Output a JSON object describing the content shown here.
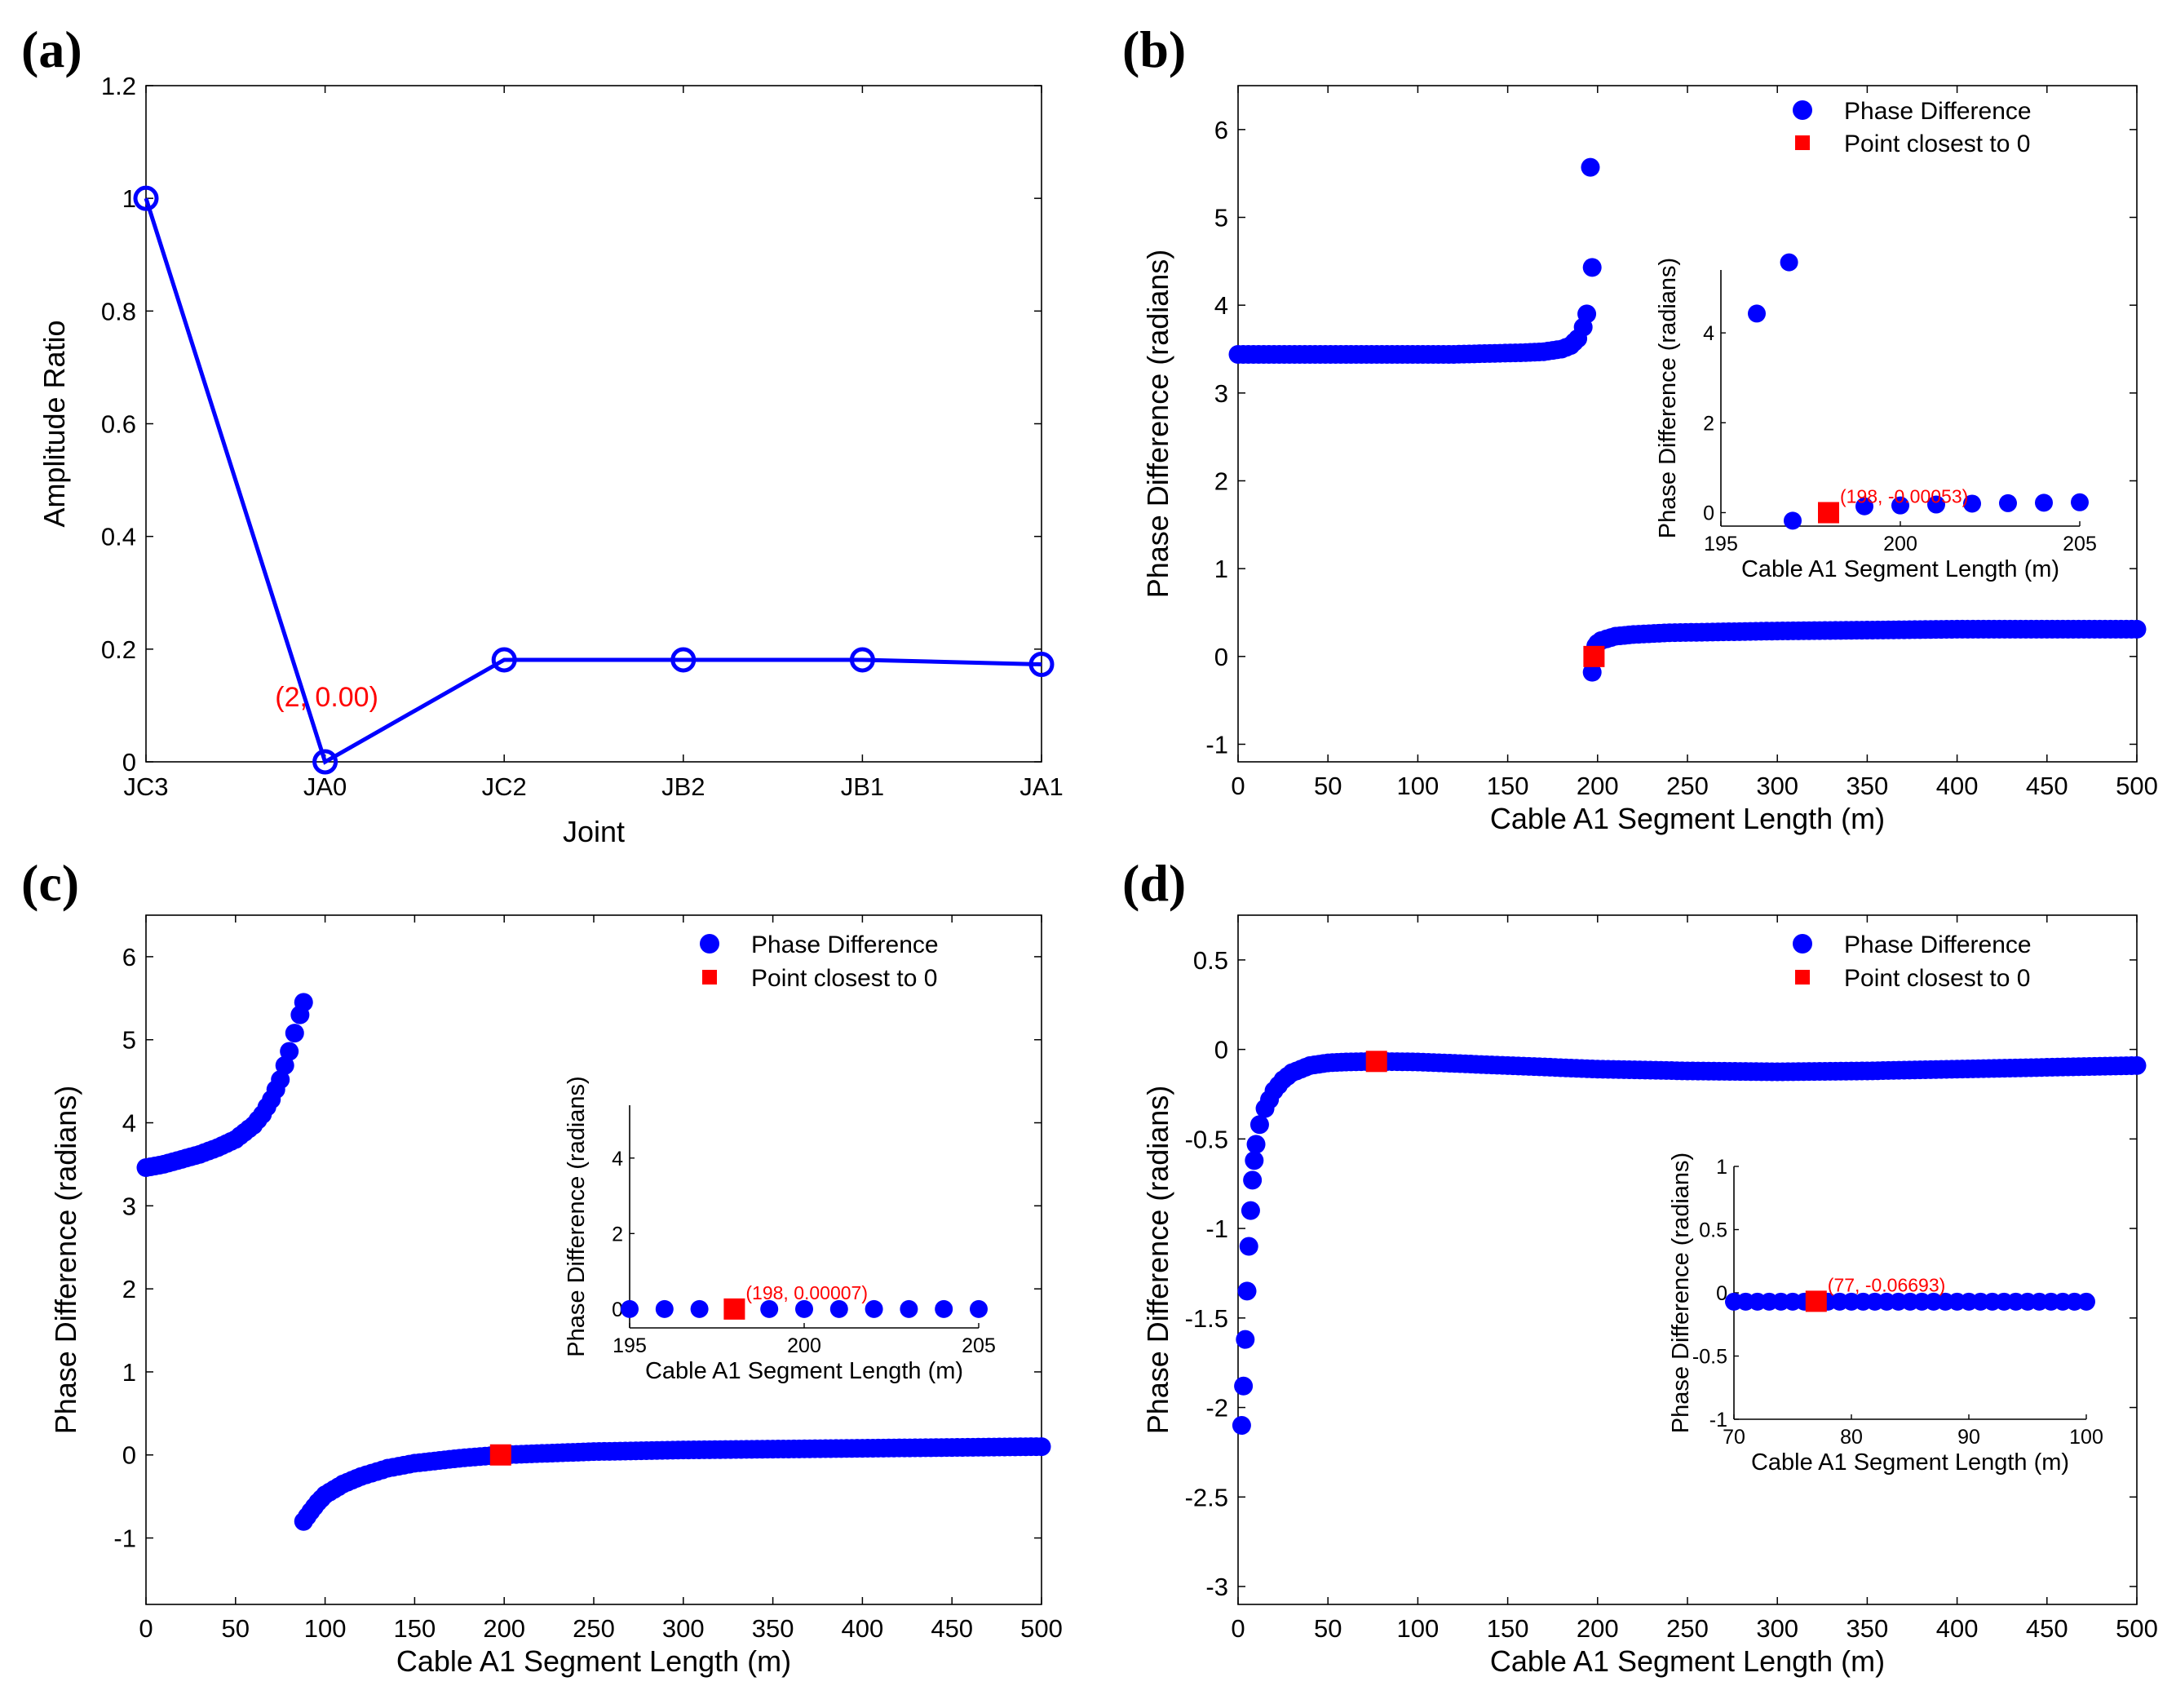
{
  "chart_data": [
    {
      "panel": "(a)",
      "type": "line",
      "xlabel": "Joint",
      "ylabel": "Amplitude Ratio",
      "categories": [
        "JC3",
        "JA0",
        "JC2",
        "JB2",
        "JB1",
        "JA1"
      ],
      "series": [
        {
          "values": [
            1.0,
            0.0,
            0.181,
            0.181,
            0.181,
            0.173
          ],
          "color": "#0000ff",
          "marker": "circle"
        }
      ],
      "ylim": [
        0,
        1.2
      ],
      "yticks": [
        "0",
        "0.2",
        "0.4",
        "0.6",
        "0.8",
        "1",
        "1.2"
      ],
      "annotation": {
        "text": "(2, 0.00)",
        "x": 2,
        "y": 0.0,
        "color": "#ff0000"
      },
      "grid": false
    },
    {
      "panel": "(b)",
      "type": "scatter",
      "xlabel": "Cable A1 Segment Length (m)",
      "ylabel": "Phase Difference (radians)",
      "xlim": [
        0,
        500
      ],
      "ylim": [
        -1.2,
        6.5
      ],
      "xticks": [
        "0",
        "50",
        "100",
        "150",
        "200",
        "250",
        "300",
        "350",
        "400",
        "450",
        "500"
      ],
      "yticks": [
        "-1",
        "0",
        "1",
        "2",
        "3",
        "4",
        "5",
        "6"
      ],
      "legend": {
        "position": "top-right",
        "entries": [
          "Phase Difference",
          "Point closest to 0"
        ]
      },
      "series": [
        {
          "name": "Phase Difference",
          "color": "#0000ff",
          "marker": "circle",
          "segments": [
            {
              "x": [
                0,
                20,
                40,
                60,
                80,
                100,
                120,
                140,
                160,
                170,
                180,
                185,
                189,
                192,
                194
              ],
              "y": [
                3.44,
                3.44,
                3.44,
                3.44,
                3.44,
                3.44,
                3.44,
                3.45,
                3.46,
                3.47,
                3.5,
                3.54,
                3.62,
                3.75,
                3.9
              ]
            },
            {
              "x": [
                196,
                197,
                197,
                199,
                200,
                202,
                205,
                210,
                220,
                240,
                270,
                300,
                350,
                400,
                450,
                500
              ],
              "y": [
                5.57,
                4.43,
                -0.18,
                0.12,
                0.15,
                0.18,
                0.2,
                0.23,
                0.25,
                0.27,
                0.28,
                0.29,
                0.3,
                0.31,
                0.31,
                0.31
              ]
            }
          ]
        },
        {
          "name": "Point closest to 0",
          "color": "#ff0000",
          "marker": "square",
          "x": [
            198
          ],
          "y": [
            -0.00053
          ]
        }
      ],
      "inset": {
        "xlabel": "Cable A1 Segment Length (m)",
        "ylabel": "Phase Difference (radians)",
        "xlim": [
          195,
          205
        ],
        "ylim": [
          -0.3,
          5.4
        ],
        "xticks": [
          "195",
          "200",
          "205"
        ],
        "yticks": [
          "0",
          "2",
          "4"
        ],
        "points": {
          "x": [
            196,
            196.9,
            197,
            199,
            200,
            201,
            202,
            203,
            204,
            205
          ],
          "y": [
            4.43,
            5.57,
            -0.18,
            0.14,
            0.16,
            0.18,
            0.2,
            0.21,
            0.22,
            0.23
          ]
        },
        "highlight": {
          "x": 198,
          "y": -0.00053
        },
        "annotation": "(198, -0.00053)"
      }
    },
    {
      "panel": "(c)",
      "type": "scatter",
      "xlabel": "Cable A1 Segment Length (m)",
      "ylabel": "Phase Difference (radians)",
      "xlim": [
        0,
        500
      ],
      "ylim": [
        -1.8,
        6.5
      ],
      "xticks": [
        "0",
        "50",
        "100",
        "150",
        "200",
        "250",
        "300",
        "350",
        "400",
        "450",
        "500"
      ],
      "yticks": [
        "-1",
        "0",
        "1",
        "2",
        "3",
        "4",
        "5",
        "6"
      ],
      "legend": {
        "position": "top-right",
        "entries": [
          "Phase Difference",
          "Point closest to 0"
        ]
      },
      "series": [
        {
          "name": "Phase Difference",
          "color": "#0000ff",
          "marker": "circle",
          "segments": [
            {
              "x": [
                0,
                10,
                20,
                30,
                40,
                50,
                60,
                65,
                70,
                75,
                80,
                83,
                86,
                88
              ],
              "y": [
                3.46,
                3.5,
                3.56,
                3.62,
                3.7,
                3.8,
                3.97,
                4.1,
                4.28,
                4.52,
                4.86,
                5.08,
                5.3,
                5.45
              ]
            },
            {
              "x": [
                88,
                92,
                96,
                100,
                110,
                120,
                135,
                150,
                175,
                198,
                250,
                300,
                350,
                400,
                450,
                500
              ],
              "y": [
                -0.8,
                -0.68,
                -0.57,
                -0.48,
                -0.35,
                -0.26,
                -0.16,
                -0.1,
                -0.04,
                0.0,
                0.04,
                0.06,
                0.07,
                0.08,
                0.09,
                0.1
              ]
            }
          ]
        },
        {
          "name": "Point closest to 0",
          "color": "#ff0000",
          "marker": "square",
          "x": [
            198
          ],
          "y": [
            7e-05
          ]
        }
      ],
      "inset": {
        "xlabel": "Cable A1 Segment Length (m)",
        "ylabel": "Phase Difference (radians)",
        "xlim": [
          195,
          205
        ],
        "ylim": [
          -0.5,
          5.4
        ],
        "xticks": [
          "195",
          "200",
          "205"
        ],
        "yticks": [
          "0",
          "2",
          "4"
        ],
        "points": {
          "x": [
            195,
            196,
            197,
            199,
            200,
            201,
            202,
            203,
            204,
            205
          ],
          "y": [
            0.0,
            0.0,
            0.0,
            0.0,
            0.0,
            0.0,
            0.0,
            0.0,
            0.0,
            0.0
          ]
        },
        "highlight": {
          "x": 198,
          "y": 7e-05
        },
        "annotation": "(198, 0.00007)"
      }
    },
    {
      "panel": "(d)",
      "type": "scatter",
      "xlabel": "Cable A1 Segment Length (m)",
      "ylabel": "Phase Difference (radians)",
      "xlim": [
        0,
        500
      ],
      "ylim": [
        -3.1,
        0.75
      ],
      "xticks": [
        "0",
        "50",
        "100",
        "150",
        "200",
        "250",
        "300",
        "350",
        "400",
        "450",
        "500"
      ],
      "yticks": [
        "-3",
        "-2.5",
        "-2",
        "-1.5",
        "-1",
        "-0.5",
        "0",
        "0.5"
      ],
      "legend": {
        "position": "top-right",
        "entries": [
          "Phase Difference",
          "Point closest to 0"
        ]
      },
      "series": [
        {
          "name": "Phase Difference",
          "color": "#0000ff",
          "marker": "circle",
          "segments": [
            {
              "x": [
                2,
                3,
                4,
                5,
                6,
                7,
                8,
                9,
                10,
                12,
                15,
                20,
                25,
                30,
                40,
                50,
                60,
                77,
                100,
                150,
                200,
                250,
                300,
                350,
                400,
                450,
                500
              ],
              "y": [
                -2.1,
                -1.88,
                -1.62,
                -1.35,
                -1.1,
                -0.9,
                -0.73,
                -0.62,
                -0.53,
                -0.42,
                -0.33,
                -0.23,
                -0.17,
                -0.13,
                -0.09,
                -0.075,
                -0.07,
                -0.067,
                -0.07,
                -0.09,
                -0.11,
                -0.12,
                -0.125,
                -0.12,
                -0.11,
                -0.1,
                -0.09
              ]
            }
          ]
        },
        {
          "name": "Point closest to 0",
          "color": "#ff0000",
          "marker": "square",
          "x": [
            77
          ],
          "y": [
            -0.06693
          ]
        }
      ],
      "inset": {
        "xlabel": "Cable A1 Segment Length (m)",
        "ylabel": "Phase Difference (radians)",
        "xlim": [
          70,
          100
        ],
        "ylim": [
          -1,
          1
        ],
        "xticks": [
          "70",
          "80",
          "90",
          "100"
        ],
        "yticks": [
          "-1",
          "-0.5",
          "0",
          "0.5",
          "1"
        ],
        "points": {
          "x": [
            70,
            71,
            72,
            73,
            74,
            75,
            76,
            78,
            79,
            80,
            81,
            82,
            83,
            84,
            85,
            86,
            87,
            88,
            89,
            90,
            91,
            92,
            93,
            94,
            95,
            96,
            97,
            98,
            99,
            100
          ],
          "y": [
            -0.07,
            -0.07,
            -0.07,
            -0.07,
            -0.07,
            -0.07,
            -0.07,
            -0.07,
            -0.07,
            -0.07,
            -0.07,
            -0.07,
            -0.07,
            -0.07,
            -0.07,
            -0.07,
            -0.07,
            -0.07,
            -0.07,
            -0.07,
            -0.07,
            -0.07,
            -0.07,
            -0.07,
            -0.07,
            -0.07,
            -0.07,
            -0.07,
            -0.07,
            -0.07
          ]
        },
        "highlight": {
          "x": 77,
          "y": -0.06693
        },
        "annotation": "(77, -0.06693)"
      }
    }
  ]
}
